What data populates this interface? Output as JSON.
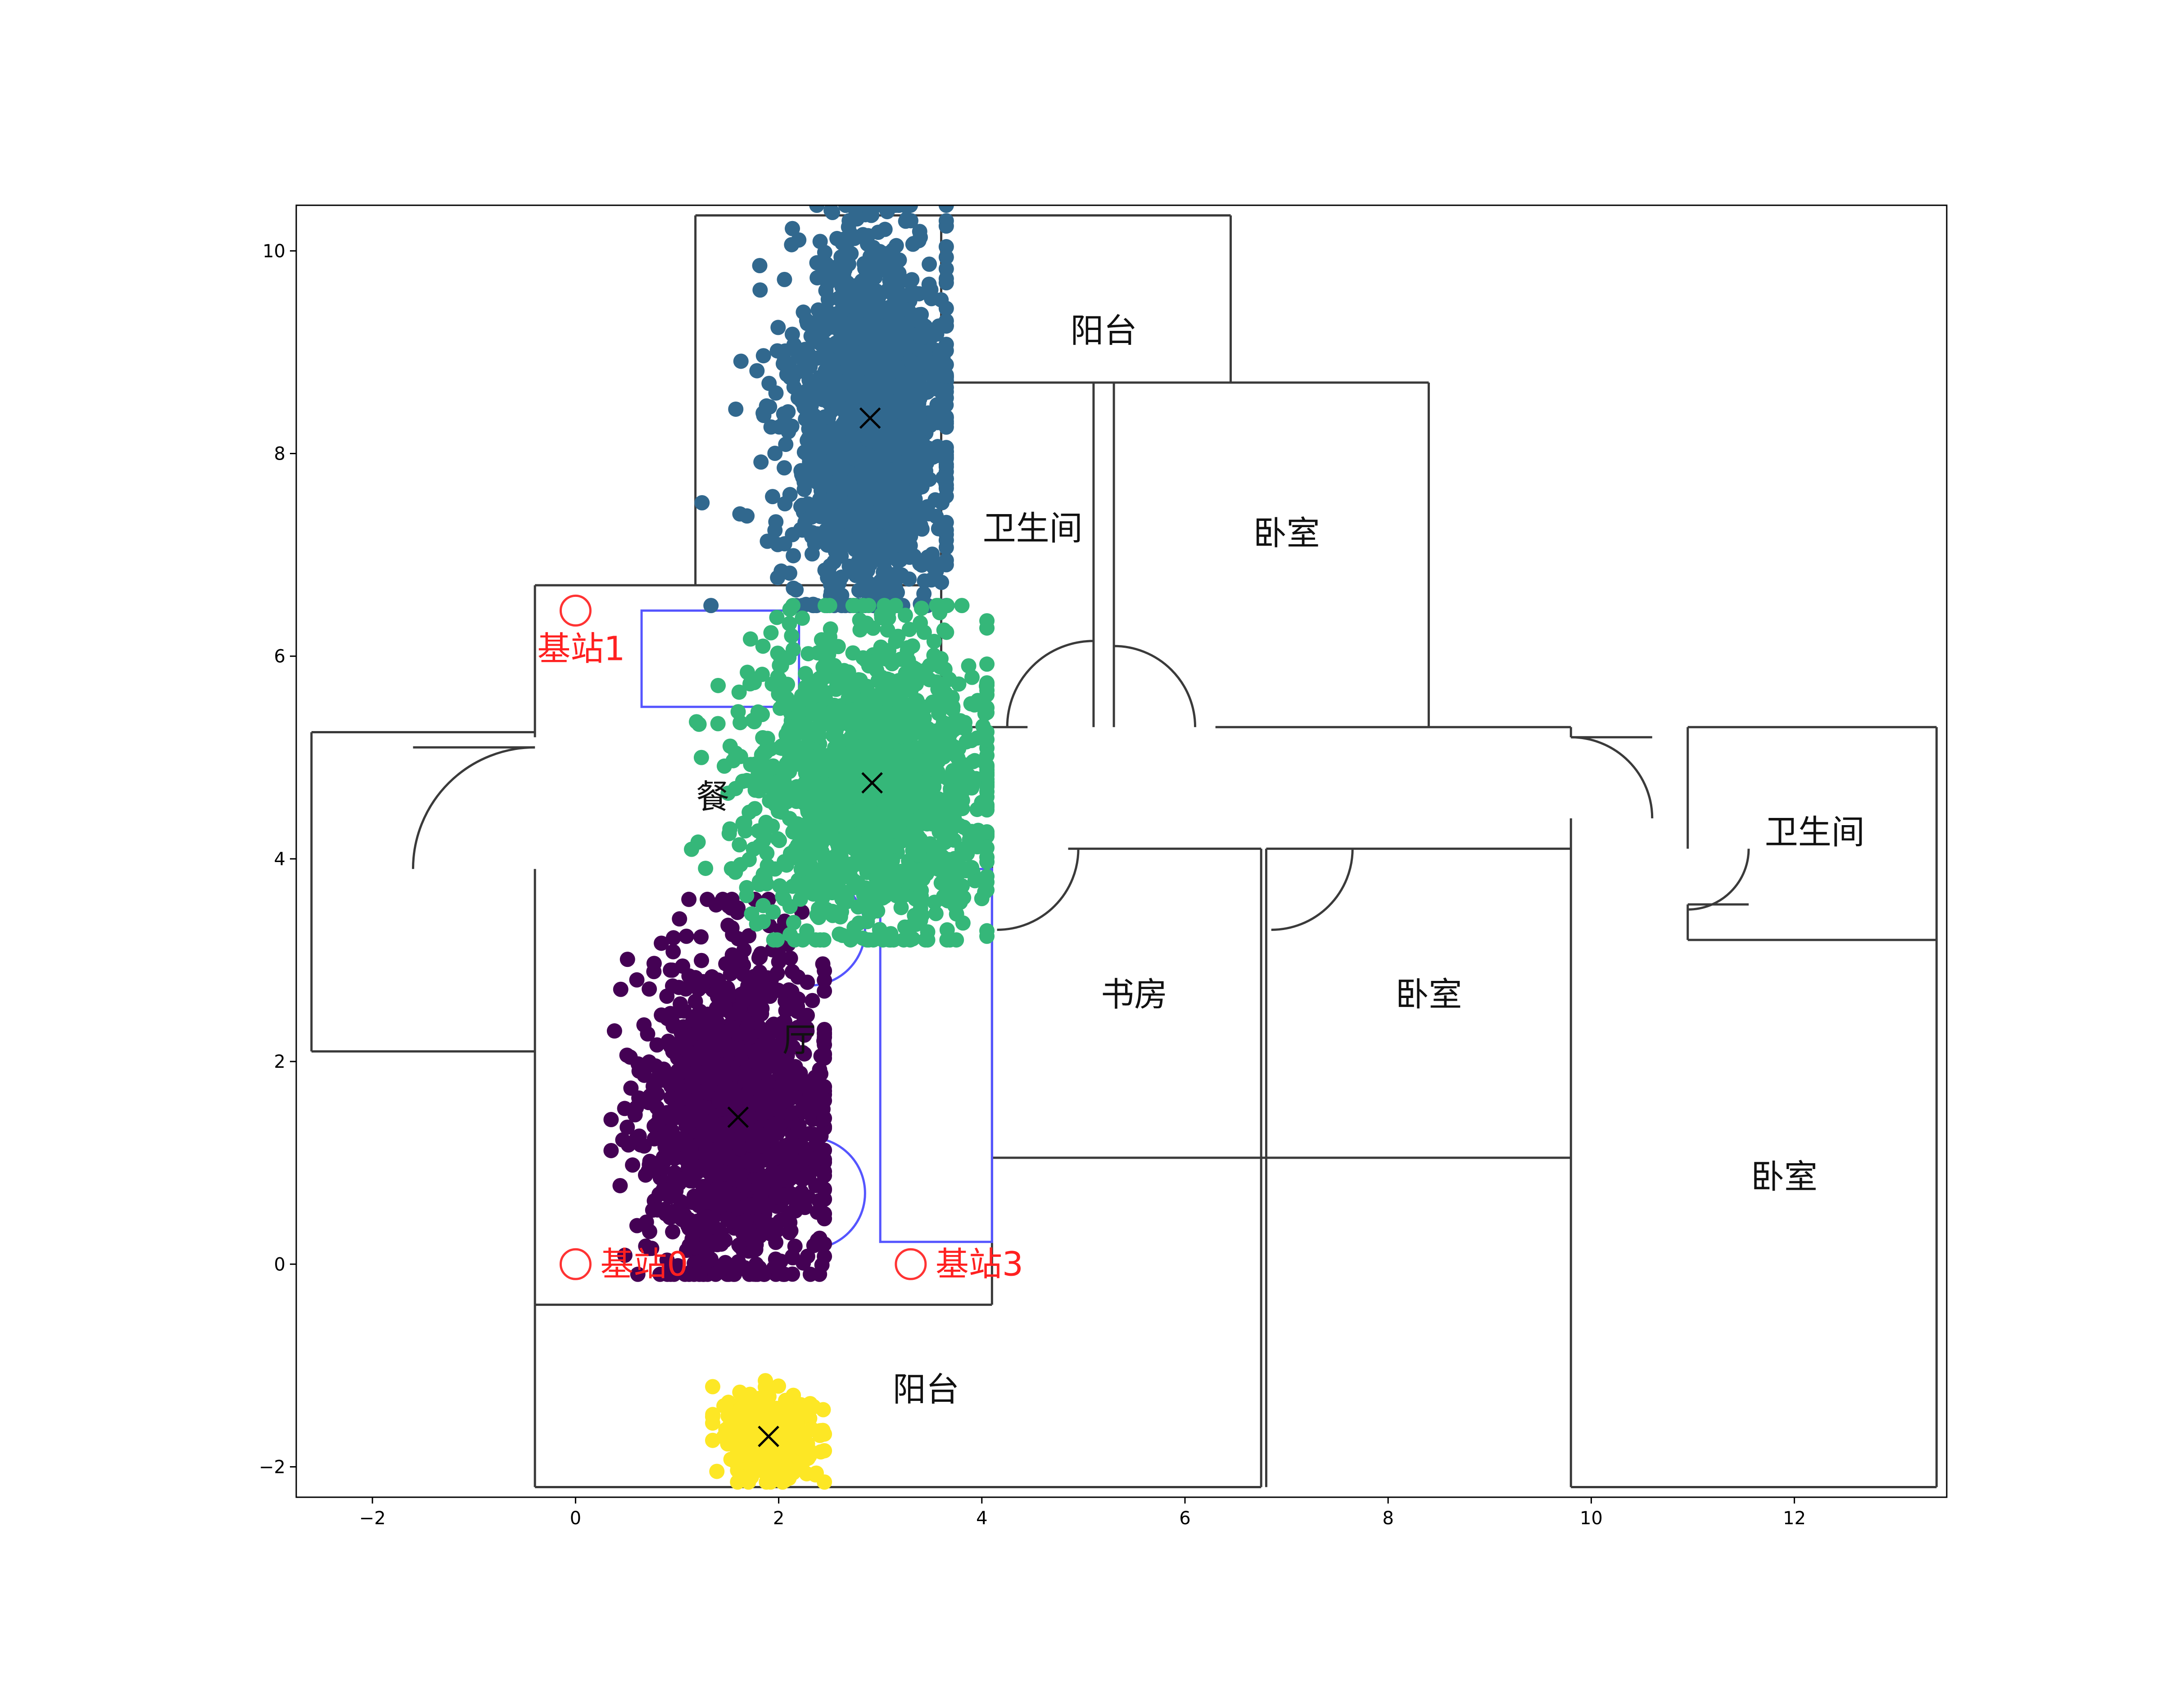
{
  "chart_data": {
    "type": "scatter",
    "title": "",
    "xlabel": "",
    "ylabel": "",
    "xlim": [
      -2.75,
      13.5
    ],
    "ylim": [
      -2.3,
      10.45
    ],
    "grid": false,
    "x_ticks": [
      -2,
      0,
      2,
      4,
      6,
      8,
      10,
      12
    ],
    "y_ticks": [
      -2,
      0,
      2,
      4,
      6,
      8,
      10
    ],
    "x_tick_labels": [
      "−2",
      "0",
      "2",
      "4",
      "6",
      "8",
      "10",
      "12"
    ],
    "y_tick_labels": [
      "−2",
      "0",
      "2",
      "4",
      "6",
      "8",
      "10"
    ],
    "clusters": [
      {
        "color": "#440154",
        "center": [
          1.6,
          1.45
        ],
        "spread": [
          0.45,
          0.8
        ],
        "x_range": [
          0.35,
          2.45
        ],
        "y_range": [
          -0.1,
          3.6
        ],
        "count": 1400
      },
      {
        "color": "#31688e",
        "center": [
          2.9,
          8.35
        ],
        "spread": [
          0.4,
          0.95
        ],
        "x_range": [
          1.15,
          3.65
        ],
        "y_range": [
          6.5,
          10.45
        ],
        "count": 1500
      },
      {
        "color": "#35b779",
        "center": [
          2.9,
          4.75
        ],
        "spread": [
          0.6,
          0.7
        ],
        "x_range": [
          0.0,
          4.05
        ],
        "y_range": [
          3.2,
          6.5
        ],
        "count": 1500
      },
      {
        "color": "#fde725",
        "center": [
          1.9,
          -1.7
        ],
        "spread": [
          0.22,
          0.2
        ],
        "x_range": [
          1.35,
          2.45
        ],
        "y_range": [
          -2.15,
          -1.15
        ],
        "count": 400
      }
    ],
    "centroids": [
      {
        "x": 1.6,
        "y": 1.45
      },
      {
        "x": 2.9,
        "y": 8.35
      },
      {
        "x": 2.92,
        "y": 4.75
      },
      {
        "x": 1.9,
        "y": -1.7
      }
    ],
    "stations": [
      {
        "label": "基站0",
        "x": 0.0,
        "y": 0.0
      },
      {
        "label": "基站1",
        "x": 0.0,
        "y": 6.45
      },
      {
        "label": "基站3",
        "x": 3.3,
        "y": 0.0
      }
    ],
    "room_labels": [
      {
        "text": "阳台",
        "x": 5.2,
        "y": 9.1
      },
      {
        "text": "卫生间",
        "x": 4.5,
        "y": 7.15
      },
      {
        "text": "卧室",
        "x": 7.0,
        "y": 7.1
      },
      {
        "text": "卫生间",
        "x": 12.2,
        "y": 4.15
      },
      {
        "text": "书房",
        "x": 5.5,
        "y": 2.55
      },
      {
        "text": "卧室",
        "x": 8.4,
        "y": 2.55
      },
      {
        "text": "卧室",
        "x": 11.9,
        "y": 0.75
      },
      {
        "text": "阳台",
        "x": 3.45,
        "y": -1.35
      },
      {
        "text": "餐",
        "x": 1.35,
        "y": 4.5
      },
      {
        "text": "厅",
        "x": 2.2,
        "y": 2.1
      }
    ],
    "floorplan": {
      "walls": [
        [
          [
            -0.4,
            6.7
          ],
          [
            3.6,
            6.7
          ]
        ],
        [
          [
            -0.4,
            6.7
          ],
          [
            -0.4,
            5.2
          ]
        ],
        [
          [
            -2.6,
            5.25
          ],
          [
            -0.4,
            5.25
          ]
        ],
        [
          [
            -2.6,
            5.25
          ],
          [
            -2.6,
            2.1
          ]
        ],
        [
          [
            -2.6,
            2.1
          ],
          [
            -0.4,
            2.1
          ]
        ],
        [
          [
            -0.4,
            5.1
          ],
          [
            -1.6,
            5.1
          ]
        ],
        [
          [
            -0.4,
            3.9
          ],
          [
            -0.4,
            -0.4
          ]
        ],
        [
          [
            -0.4,
            -0.4
          ],
          [
            4.1,
            -0.4
          ]
        ],
        [
          [
            4.1,
            -0.4
          ],
          [
            4.1,
            3.95
          ]
        ],
        [
          [
            -0.4,
            -0.4
          ],
          [
            -0.4,
            -2.2
          ]
        ],
        [
          [
            -0.4,
            -2.2
          ],
          [
            6.75,
            -2.2
          ]
        ],
        [
          [
            6.75,
            -2.2
          ],
          [
            6.75,
            4.1
          ]
        ],
        [
          [
            1.18,
            10.35
          ],
          [
            6.45,
            10.35
          ]
        ],
        [
          [
            1.18,
            10.35
          ],
          [
            1.18,
            6.7
          ]
        ],
        [
          [
            3.6,
            10.35
          ],
          [
            3.6,
            5.3
          ]
        ],
        [
          [
            6.45,
            10.35
          ],
          [
            6.45,
            8.7
          ]
        ],
        [
          [
            3.6,
            8.7
          ],
          [
            8.4,
            8.7
          ]
        ],
        [
          [
            8.4,
            8.7
          ],
          [
            8.4,
            5.3
          ]
        ],
        [
          [
            5.3,
            8.7
          ],
          [
            5.3,
            5.3
          ]
        ],
        [
          [
            5.1,
            8.7
          ],
          [
            5.1,
            5.3
          ]
        ],
        [
          [
            3.6,
            5.3
          ],
          [
            4.45,
            5.3
          ]
        ],
        [
          [
            6.3,
            5.3
          ],
          [
            9.8,
            5.3
          ]
        ],
        [
          [
            9.8,
            5.3
          ],
          [
            9.8,
            5.2
          ]
        ],
        [
          [
            9.8,
            5.2
          ],
          [
            10.6,
            5.2
          ]
        ],
        [
          [
            10.95,
            5.3
          ],
          [
            13.4,
            5.3
          ]
        ],
        [
          [
            13.4,
            5.3
          ],
          [
            13.4,
            -2.2
          ]
        ],
        [
          [
            9.8,
            -2.2
          ],
          [
            13.4,
            -2.2
          ]
        ],
        [
          [
            9.8,
            -2.2
          ],
          [
            9.8,
            4.4
          ]
        ],
        [
          [
            9.8,
            4.1
          ],
          [
            6.8,
            4.1
          ]
        ],
        [
          [
            6.75,
            4.1
          ],
          [
            4.85,
            4.1
          ]
        ],
        [
          [
            4.1,
            1.05
          ],
          [
            9.8,
            1.05
          ]
        ],
        [
          [
            6.8,
            4.1
          ],
          [
            6.8,
            -2.2
          ]
        ],
        [
          [
            10.95,
            5.3
          ],
          [
            10.95,
            4.1
          ]
        ],
        [
          [
            10.95,
            3.55
          ],
          [
            10.95,
            3.2
          ]
        ],
        [
          [
            10.95,
            3.2
          ],
          [
            13.4,
            3.2
          ]
        ],
        [
          [
            10.95,
            3.55
          ],
          [
            11.55,
            3.55
          ]
        ]
      ],
      "door_arcs": [
        {
          "cx": -0.4,
          "cy": 3.9,
          "r": 1.2,
          "start": 90,
          "end": 180
        },
        {
          "cx": 5.1,
          "cy": 5.3,
          "r": 0.85,
          "start": 90,
          "end": 180
        },
        {
          "cx": 5.3,
          "cy": 5.3,
          "r": 0.8,
          "start": 0,
          "end": 90
        },
        {
          "cx": 9.8,
          "cy": 4.4,
          "r": 0.8,
          "start": 0,
          "end": 90
        },
        {
          "cx": 4.15,
          "cy": 4.1,
          "r": 0.8,
          "start": 270,
          "end": 360
        },
        {
          "cx": 6.85,
          "cy": 4.1,
          "r": 0.8,
          "start": 270,
          "end": 360
        },
        {
          "cx": 10.95,
          "cy": 4.1,
          "r": 0.6,
          "start": 270,
          "end": 360
        }
      ],
      "furniture_rects": [
        {
          "x0": 0.65,
          "y0": 5.5,
          "x1": 2.2,
          "y1": 6.45
        },
        {
          "x0": 3.0,
          "y0": 0.22,
          "x1": 4.1,
          "y1": 3.9
        }
      ],
      "furniture_arcs": [
        {
          "cx": 2.3,
          "cy": 3.3,
          "r": 0.55
        },
        {
          "cx": 2.3,
          "cy": 0.7,
          "r": 0.55
        }
      ]
    }
  }
}
